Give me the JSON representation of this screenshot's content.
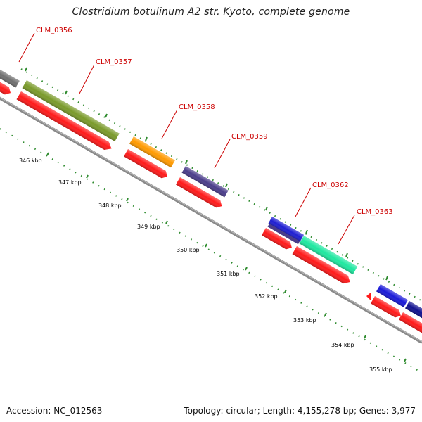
{
  "title": "Clostridium botulinum A2 str. Kyoto, complete genome",
  "footer": {
    "accession": "Accession: NC_012563",
    "summary": "Topology: circular; Length: 4,155,278 bp; Genes: 3,977"
  },
  "colors": {
    "backbone": "#8a8a8a",
    "cds": "#ff1a1a",
    "tick": "#2e8b2e",
    "label": "#cc0000"
  },
  "genes": [
    {
      "name": "CLM_0356",
      "color": "#6f6f6f"
    },
    {
      "name": "CLM_0357",
      "color": "#7a9a2a"
    },
    {
      "name": "CLM_0358",
      "color": "#ff9a00"
    },
    {
      "name": "CLM_0359",
      "color": "#4a3d8a"
    },
    {
      "name": "CLM_0362",
      "color": "#1e1ed2"
    },
    {
      "name": "CLM_0363",
      "color": "#1ee8a0"
    },
    {
      "name": "",
      "color": "#1a1ad8"
    },
    {
      "name": "",
      "color": "#121290"
    }
  ],
  "gene_labels": [
    "CLM_0356",
    "CLM_0357",
    "CLM_0358",
    "CLM_0359",
    "CLM_0362",
    "CLM_0363"
  ],
  "scale_labels": [
    "346 kbp",
    "347 kbp",
    "348 kbp",
    "349 kbp",
    "350 kbp",
    "351 kbp",
    "352 kbp",
    "353 kbp",
    "354 kbp",
    "355 kbp"
  ]
}
